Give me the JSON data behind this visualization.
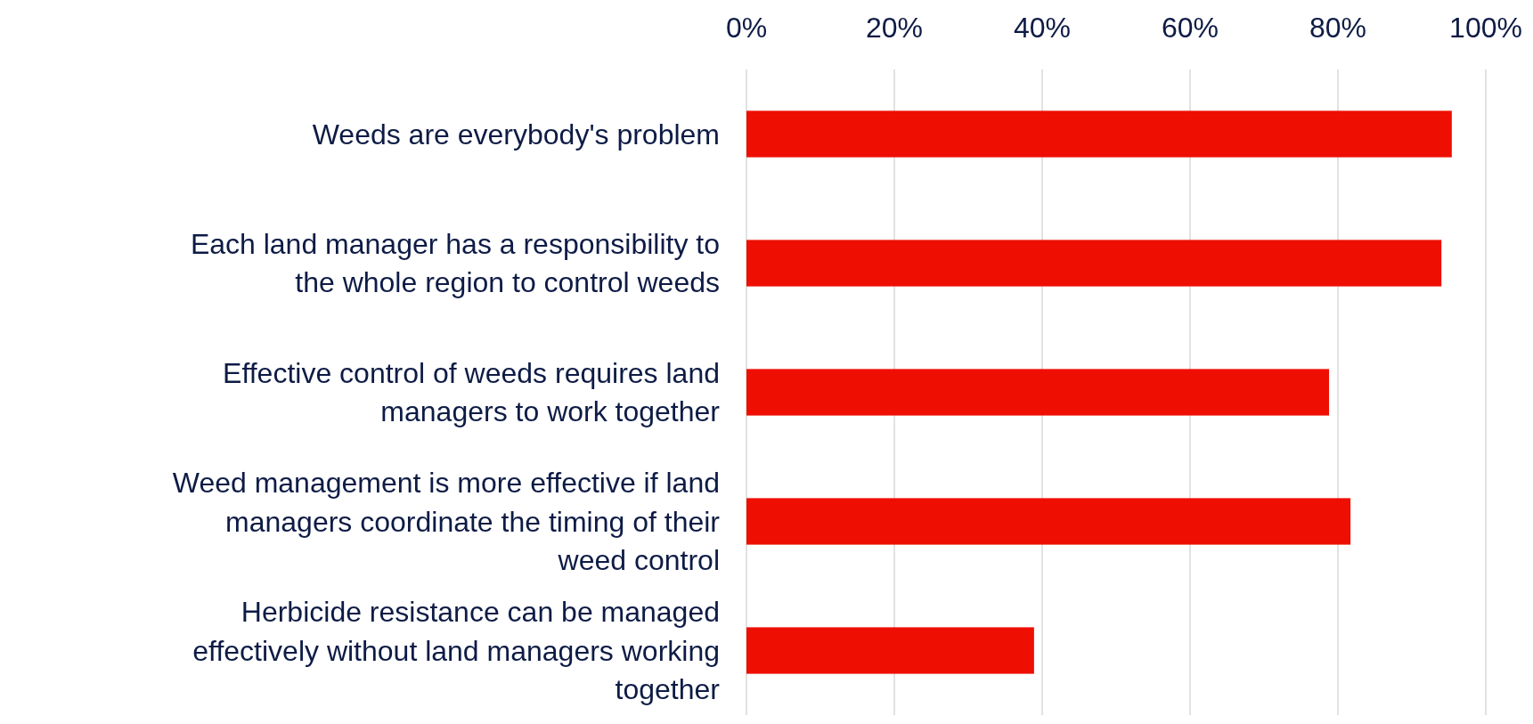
{
  "chart_data": {
    "type": "bar",
    "orientation": "horizontal",
    "categories": [
      "Weeds are everybody's problem",
      "Each land manager has a responsibility to the whole region to control weeds",
      "Effective control of weeds requires land managers to work together",
      "Weed management is more effective if land managers coordinate the timing of their weed control",
      "Herbicide resistance can be managed effectively without land managers working together"
    ],
    "values": [
      95.4,
      94.0,
      78.8,
      81.7,
      38.9
    ],
    "color": "#ee0e02",
    "xlim": [
      0,
      100
    ],
    "xticks": [
      {
        "value": 0,
        "label": "0%"
      },
      {
        "value": 20,
        "label": "20%"
      },
      {
        "value": 40,
        "label": "40%"
      },
      {
        "value": 60,
        "label": "60%"
      },
      {
        "value": 80,
        "label": "80%"
      },
      {
        "value": 100,
        "label": "100%"
      }
    ],
    "grid": "x"
  }
}
